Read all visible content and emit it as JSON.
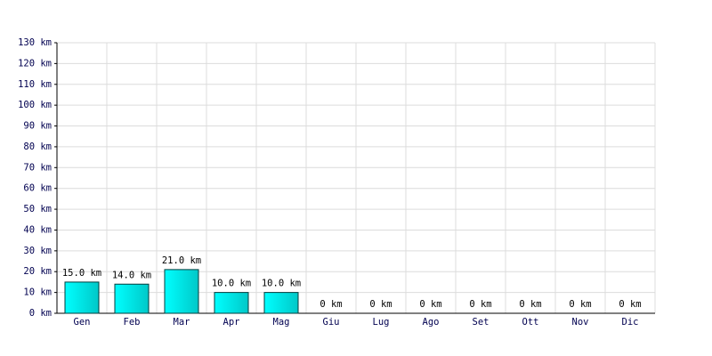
{
  "chart_data": {
    "type": "bar",
    "categories": [
      "Gen",
      "Feb",
      "Mar",
      "Apr",
      "Mag",
      "Giu",
      "Lug",
      "Ago",
      "Set",
      "Ott",
      "Nov",
      "Dic"
    ],
    "values": [
      15,
      14,
      21,
      10,
      10,
      0,
      0,
      0,
      0,
      0,
      0,
      0
    ],
    "value_labels": [
      "15.0 km",
      "14.0 km",
      "21.0 km",
      "10.0 km",
      "10.0 km",
      "0 km",
      "0 km",
      "0 km",
      "0 km",
      "0 km",
      "0 km",
      "0 km"
    ],
    "color": "#00c8c8",
    "ylim": [
      0,
      130
    ],
    "yticks": [
      {
        "value": 0,
        "label": "0 km"
      },
      {
        "value": 10,
        "label": "10 km"
      },
      {
        "value": 20,
        "label": "20 km"
      },
      {
        "value": 30,
        "label": "30 km"
      },
      {
        "value": 40,
        "label": "40 km"
      },
      {
        "value": 50,
        "label": "50 km"
      },
      {
        "value": 60,
        "label": "60 km"
      },
      {
        "value": 70,
        "label": "70 km"
      },
      {
        "value": 80,
        "label": "80 km"
      },
      {
        "value": 90,
        "label": "90 km"
      },
      {
        "value": 100,
        "label": "100 km"
      },
      {
        "value": 110,
        "label": "110 km"
      },
      {
        "value": 120,
        "label": "120 km"
      },
      {
        "value": 130,
        "label": "130 km"
      }
    ],
    "grid": true
  }
}
